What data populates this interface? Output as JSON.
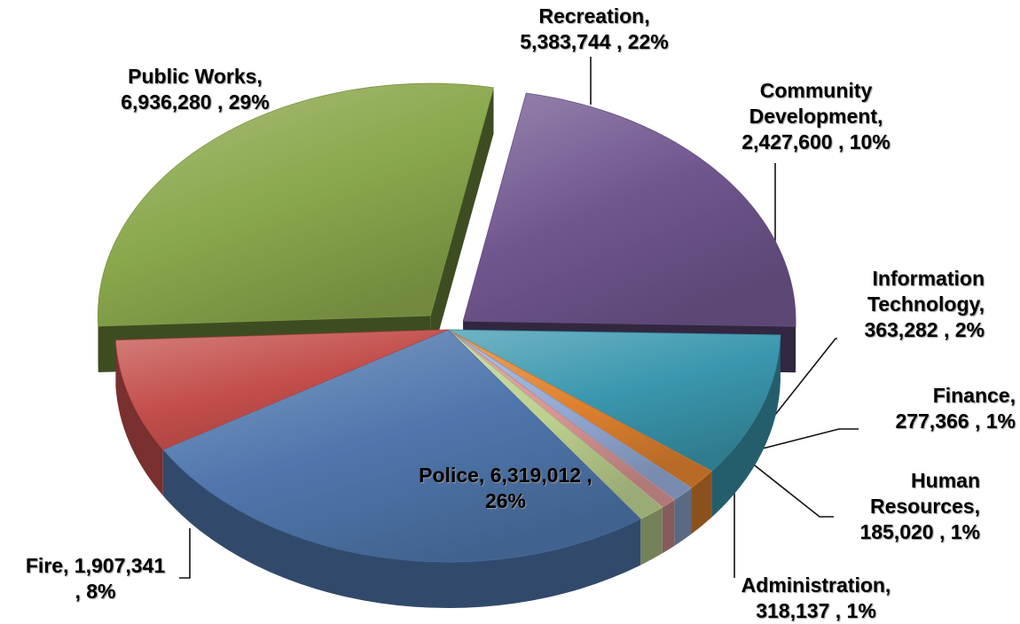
{
  "chart_data": {
    "type": "pie",
    "variant": "exploded-3d",
    "title": "",
    "slices": [
      {
        "name": "Recreation",
        "value": 5383744,
        "percent": 22,
        "color": "#70568f",
        "label_lines": [
          "Recreation,",
          "5,383,744 , 22%"
        ]
      },
      {
        "name": "Community Development",
        "value": 2427600,
        "percent": 10,
        "color": "#3a97ae",
        "label_lines": [
          "Community",
          "Development,",
          "2,427,600 , 10%"
        ]
      },
      {
        "name": "Information Technology",
        "value": 363282,
        "percent": 2,
        "color": "#e0822f",
        "label_lines": [
          "Information",
          "Technology,",
          "363,282 , 2%"
        ]
      },
      {
        "name": "Finance",
        "value": 277366,
        "percent": 1,
        "color": "#93a9d4",
        "label_lines": [
          "Finance,",
          "277,366 , 1%"
        ]
      },
      {
        "name": "Human Resources",
        "value": 185020,
        "percent": 1,
        "color": "#d79593",
        "label_lines": [
          "Human",
          "Resources,",
          "185,020 , 1%"
        ]
      },
      {
        "name": "Administration",
        "value": 318137,
        "percent": 1,
        "color": "#bdd08f",
        "label_lines": [
          "Administration,",
          "318,137 , 1%"
        ]
      },
      {
        "name": "Police",
        "value": 6319012,
        "percent": 26,
        "color": "#4f77ad",
        "label_lines": [
          "Police,  6,319,012 ,",
          "26%"
        ]
      },
      {
        "name": "Fire",
        "value": 1907341,
        "percent": 8,
        "color": "#c34e4b",
        "label_lines": [
          "Fire,  1,907,341",
          ", 8%"
        ]
      },
      {
        "name": "Public Works",
        "value": 6936280,
        "percent": 29,
        "color": "#8aa84c",
        "label_lines": [
          "Public Works,",
          "6,936,280 , 29%"
        ]
      }
    ]
  }
}
